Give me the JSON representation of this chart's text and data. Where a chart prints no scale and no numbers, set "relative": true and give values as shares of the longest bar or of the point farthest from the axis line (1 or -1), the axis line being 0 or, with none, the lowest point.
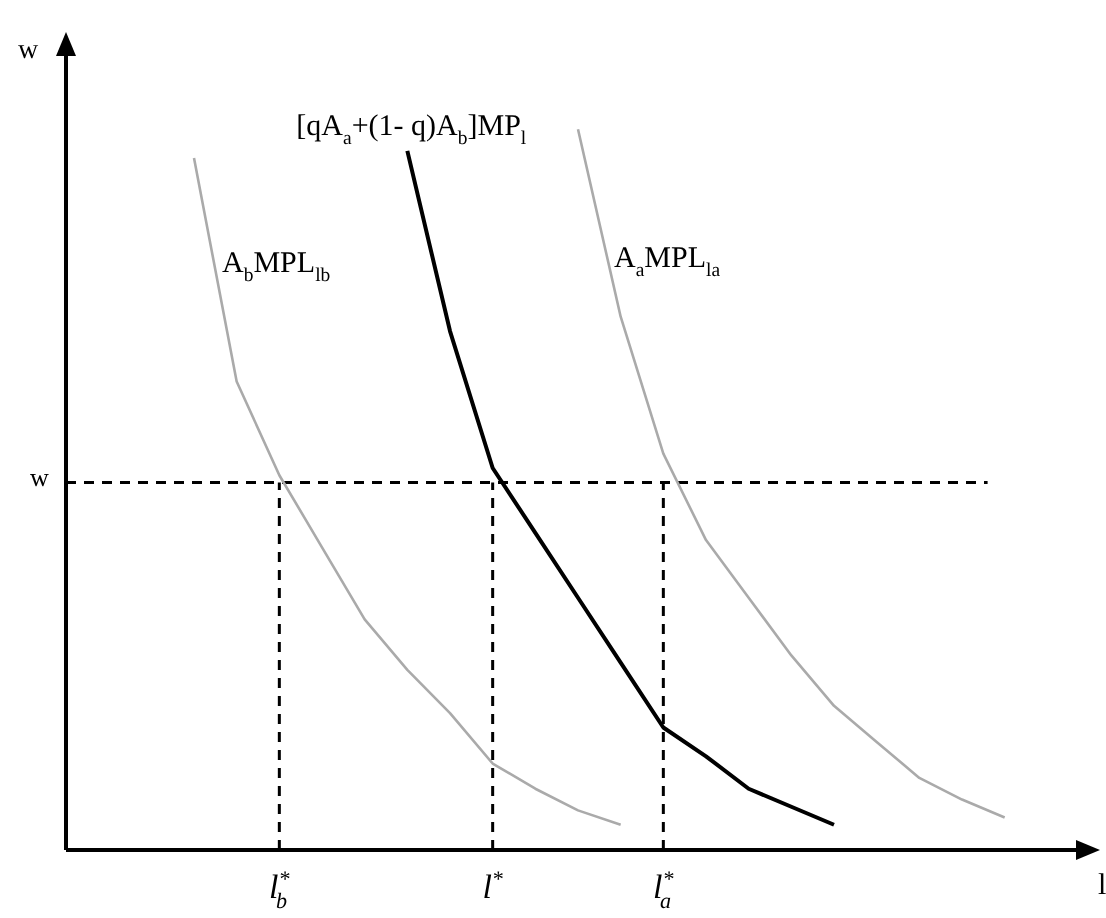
{
  "chart_data": {
    "type": "line",
    "relative": true,
    "xlabel": "l",
    "ylabel": "w",
    "categories": [
      null,
      null,
      null,
      null,
      null,
      "l$^{*}$$_{b}$",
      null,
      null,
      null,
      null,
      "l$^{*}$",
      null,
      null,
      null,
      "l$^{*}$$_{a}$",
      null,
      null,
      null,
      null,
      null,
      null,
      null,
      null,
      null
    ],
    "series": [
      {
        "name": "A$_{b}$MPL$_{lb}$",
        "color": "#aaaaaa",
        "values": [
          null,
          null,
          null,
          0.96,
          0.65,
          0.52,
          0.42,
          0.32,
          0.25,
          0.19,
          0.12,
          0.085,
          0.055,
          0.035,
          null,
          null,
          null,
          null,
          null,
          null,
          null,
          null,
          null,
          null
        ]
      },
      {
        "name": "[qA$_{a}$+(1- q)A$_{b}$]MP$_{l}$",
        "color": "#000000",
        "values": [
          null,
          null,
          null,
          null,
          null,
          null,
          null,
          null,
          0.97,
          0.72,
          0.53,
          0.44,
          0.35,
          0.26,
          0.17,
          0.13,
          0.085,
          0.06,
          0.035,
          null,
          null,
          null,
          null,
          null
        ]
      },
      {
        "name": "A$_{a}$MPL$_{la}$",
        "color": "#aaaaaa",
        "values": [
          null,
          null,
          null,
          null,
          null,
          null,
          null,
          null,
          null,
          null,
          null,
          null,
          1.0,
          0.74,
          0.55,
          0.43,
          0.35,
          0.27,
          0.2,
          0.15,
          0.1,
          0.07,
          0.045,
          null
        ]
      }
    ],
    "ref_lines": [
      {
        "axis": "y",
        "value": 0.51,
        "label": "w",
        "color": "#000000",
        "line_style": "dashed"
      },
      {
        "axis": "x",
        "value": "l$^{*}$$_{b}$",
        "label": null,
        "color": "#000000",
        "line_style": "dashed"
      },
      {
        "axis": "x",
        "value": "l$^{*}$",
        "label": null,
        "color": "#000000",
        "line_style": "dashed"
      },
      {
        "axis": "x",
        "value": "l$^{*}$$_{a}$",
        "label": null,
        "color": "#000000",
        "line_style": "dashed"
      }
    ],
    "marker": "none",
    "line_style": "solid"
  }
}
